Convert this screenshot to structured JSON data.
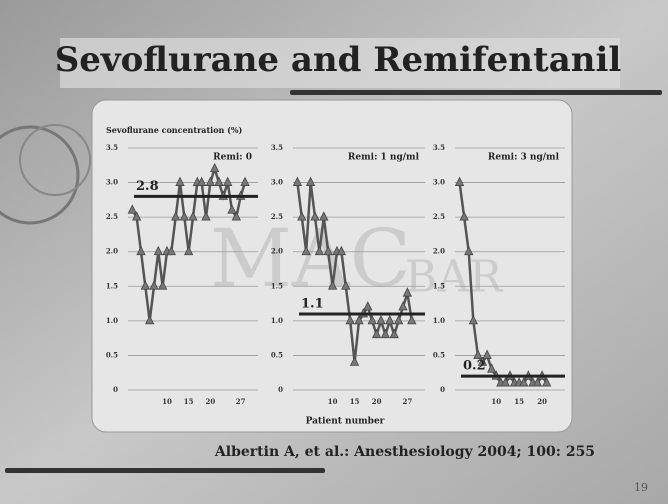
{
  "title": "Sevoflurane and Remifentanil",
  "citation": "Albertin A, et al.: Anesthesiology 2004; 100: 255",
  "page_number": "19",
  "watermark": [
    "MAC",
    "BAR"
  ],
  "y_label": "Sevoflurane concentration (%)",
  "x_label": "Patient number",
  "chart_data": [
    {
      "type": "line",
      "title": "Remi: 0",
      "color": "#555555",
      "x": [
        2,
        3,
        4,
        5,
        6,
        7,
        8,
        9,
        10,
        11,
        12,
        13,
        14,
        15,
        16,
        17,
        18,
        19,
        20,
        21,
        22,
        23,
        24,
        25,
        26,
        27,
        28
      ],
      "values": [
        2.6,
        2.5,
        2.0,
        1.5,
        1.0,
        1.5,
        2.0,
        1.5,
        2.0,
        2.0,
        2.5,
        3.0,
        2.5,
        2.0,
        2.5,
        3.0,
        3.0,
        2.5,
        3.0,
        3.2,
        3.0,
        2.8,
        3.0,
        2.6,
        2.5,
        2.8,
        3.0
      ],
      "reference": 2.8,
      "xlim": [
        1,
        31
      ],
      "xticks": [
        10,
        15,
        20,
        27
      ],
      "ylim": [
        0,
        3.5
      ],
      "yticks": [
        0,
        0.5,
        {
          "value": 1,
          "label": "1.0"
        },
        1.5,
        {
          "value": 2,
          "label": "2.0"
        },
        2.5,
        {
          "value": 3,
          "label": "3.0"
        },
        3.5
      ],
      "grid": true
    },
    {
      "type": "line",
      "title": "Remi: 1 ng/ml",
      "color": "#555555",
      "x": [
        2,
        3,
        4,
        5,
        6,
        7,
        8,
        9,
        10,
        11,
        12,
        13,
        14,
        15,
        16,
        17,
        18,
        19,
        20,
        21,
        22,
        23,
        24,
        25,
        26,
        27,
        28
      ],
      "values": [
        3.0,
        2.5,
        2.0,
        3.0,
        2.5,
        2.0,
        2.5,
        2.0,
        1.5,
        2.0,
        2.0,
        1.5,
        1.0,
        0.4,
        1.0,
        1.1,
        1.2,
        1.0,
        0.8,
        1.0,
        0.8,
        1.0,
        0.8,
        1.0,
        1.2,
        1.4,
        1.0
      ],
      "reference": 1.1,
      "xlim": [
        1,
        31
      ],
      "xticks": [
        10,
        15,
        20,
        27
      ],
      "ylim": [
        0,
        3.5
      ],
      "yticks": [
        0,
        0.5,
        {
          "value": 1,
          "label": "1.0"
        },
        1.5,
        {
          "value": 2,
          "label": "2.0"
        },
        2.5,
        {
          "value": 3,
          "label": "3.0"
        },
        3.5
      ],
      "grid": true
    },
    {
      "type": "line",
      "title": "Remi: 3 ng/ml",
      "color": "#555555",
      "x": [
        2,
        3,
        4,
        5,
        6,
        7,
        8,
        9,
        10,
        11,
        12,
        13,
        14,
        15,
        16,
        17,
        18,
        19,
        20,
        21
      ],
      "values": [
        3.0,
        2.5,
        2.0,
        1.0,
        0.5,
        0.4,
        0.5,
        0.3,
        0.2,
        0.1,
        0.1,
        0.2,
        0.1,
        0.1,
        0.1,
        0.2,
        0.1,
        0.1,
        0.2,
        0.1
      ],
      "reference": 0.2,
      "xlim": [
        1,
        25
      ],
      "xticks": [
        10,
        15,
        20
      ],
      "ylim": [
        0,
        3.5
      ],
      "yticks": [
        0,
        0.5,
        {
          "value": 1,
          "label": "1.0"
        },
        1.5,
        {
          "value": 2,
          "label": "2.0"
        },
        2.5,
        {
          "value": 3,
          "label": "3.0"
        },
        3.5
      ],
      "grid": true
    }
  ]
}
